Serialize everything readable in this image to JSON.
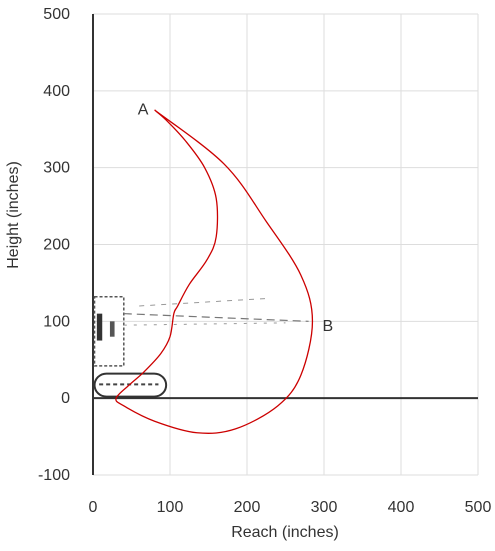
{
  "chart_data": {
    "type": "line",
    "title": "",
    "xlabel": "Reach (inches)",
    "ylabel": "Height (inches)",
    "xlim": [
      0,
      500
    ],
    "ylim": [
      -100,
      500
    ],
    "x_ticks": [
      "0",
      "100",
      "200",
      "300",
      "400",
      "500"
    ],
    "y_ticks": [
      "500",
      "400",
      "300",
      "200",
      "100",
      "0",
      "-100"
    ],
    "grid": true,
    "series": [
      {
        "color": "#cc0000",
        "points": [
          [
            80,
            375
          ],
          [
            170,
            305
          ],
          [
            225,
            230
          ],
          [
            270,
            160
          ],
          [
            285,
            100
          ],
          [
            270,
            30
          ],
          [
            240,
            -10
          ],
          [
            185,
            -40
          ],
          [
            135,
            -45
          ],
          [
            80,
            -30
          ],
          [
            40,
            -10
          ],
          [
            30,
            0
          ],
          [
            48,
            18
          ],
          [
            66,
            34
          ],
          [
            88,
            58
          ],
          [
            100,
            80
          ],
          [
            105,
            110
          ],
          [
            110,
            120
          ],
          [
            125,
            148
          ],
          [
            148,
            180
          ],
          [
            160,
            210
          ],
          [
            160,
            260
          ],
          [
            145,
            300
          ],
          [
            120,
            335
          ],
          [
            95,
            362
          ],
          [
            80,
            375
          ]
        ]
      }
    ],
    "annotations": [
      {
        "label": "A",
        "x": 65,
        "y": 377
      },
      {
        "label": "B",
        "x": 305,
        "y": 95
      }
    ],
    "colors": {
      "axis": "#333333",
      "grid": "#dddddd",
      "curve": "#cc0000",
      "text": "#333333"
    }
  }
}
